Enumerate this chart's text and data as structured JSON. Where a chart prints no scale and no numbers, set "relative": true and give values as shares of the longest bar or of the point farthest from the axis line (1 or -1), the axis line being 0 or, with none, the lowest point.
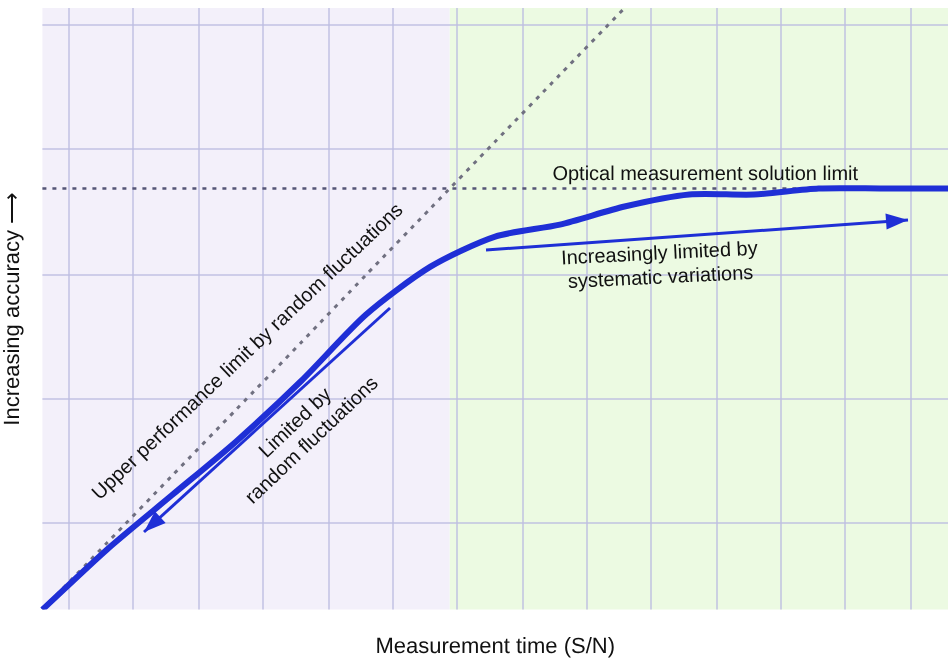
{
  "chart_data": {
    "type": "line",
    "relative": true,
    "xlabel": "Measurement time (S/N)",
    "ylabel": "Increasing accuracy ⟶",
    "categories": [
      null,
      null,
      null,
      null,
      null,
      null,
      null,
      null,
      null,
      null,
      null,
      null,
      null,
      null,
      null
    ],
    "series": [
      {
        "color": "#1f2fd6",
        "line_style": "solid",
        "values": [
          0,
          0.1,
          0.19,
          0.28,
          0.38,
          0.49,
          0.57,
          0.62,
          0.64,
          0.67,
          0.69,
          0.69,
          0.7,
          0.7,
          0.7
        ]
      },
      {
        "color": "#707080",
        "line_style": "dotted",
        "values": [
          0,
          0.111,
          0.222,
          0.333,
          0.444,
          0.556,
          0.667,
          0.778,
          0.889,
          1.0,
          null,
          null,
          null,
          null,
          null
        ]
      }
    ],
    "ref_lines": [
      {
        "axis": "y",
        "value": 0.7,
        "label": "Optical measurement solution limit",
        "color": "#555577",
        "line_style": "dotted"
      }
    ],
    "annotations": [
      "Upper performance limit by random fluctuations",
      "Limited by\nrandom fluctuations",
      "Increasingly limited by\nsystematic variations"
    ],
    "grid": true,
    "legend": false
  }
}
